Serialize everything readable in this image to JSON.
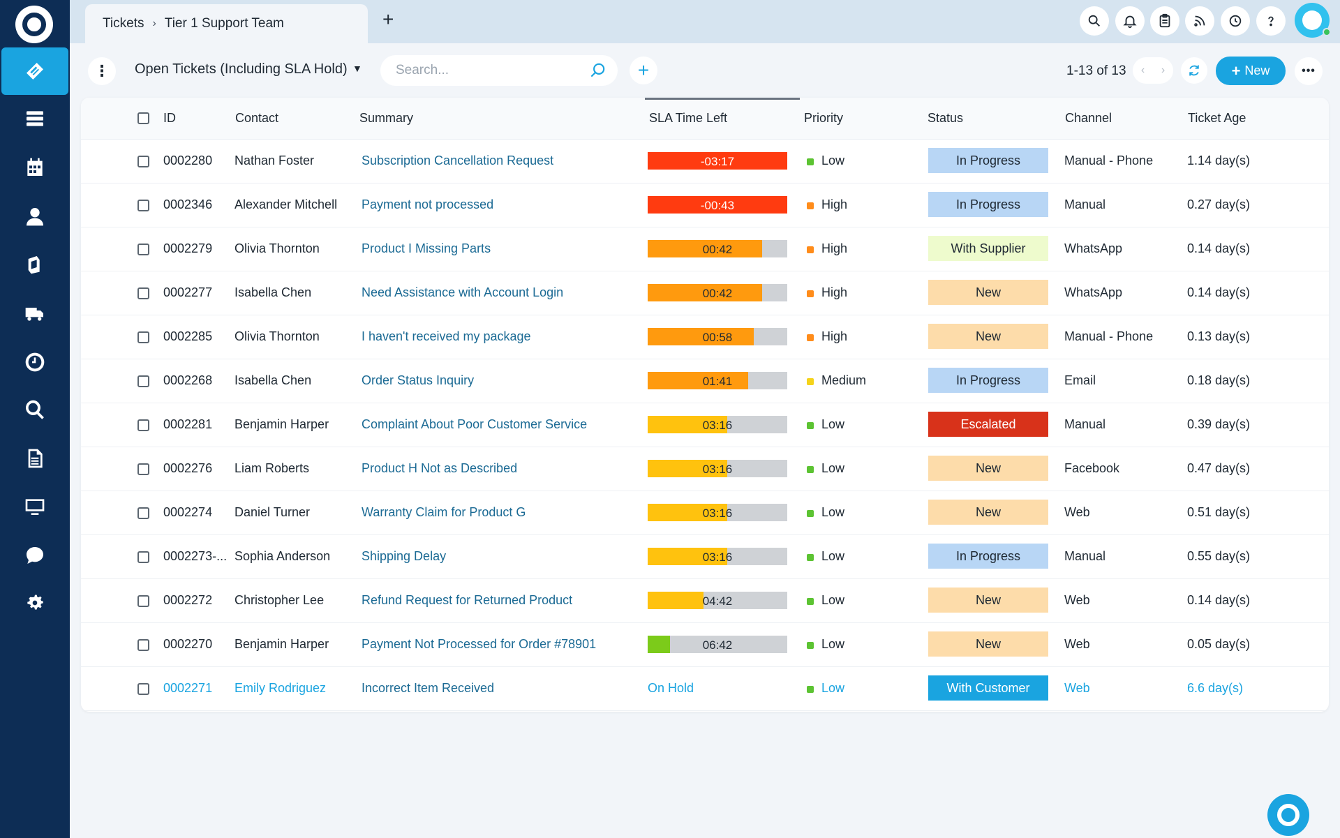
{
  "breadcrumb": {
    "root": "Tickets",
    "current": "Tier 1 Support Team"
  },
  "toolbar": {
    "view_title": "Open Tickets (Including SLA Hold)",
    "search_placeholder": "Search...",
    "pager": "1-13 of 13",
    "new_label": "New"
  },
  "sidebar_icons": [
    "tickets-icon",
    "list-icon",
    "calendar-icon",
    "user-icon",
    "files-icon",
    "truck-icon",
    "clock-icon",
    "search-icon",
    "document-icon",
    "monitor-icon",
    "chat-icon",
    "settings-icon"
  ],
  "top_icons": [
    "search-icon",
    "bell-icon",
    "clipboard-icon",
    "rss-icon",
    "clock-icon",
    "help-icon"
  ],
  "columns": {
    "id": "ID",
    "contact": "Contact",
    "summary": "Summary",
    "sla": "SLA Time Left",
    "priority": "Priority",
    "status": "Status",
    "channel": "Channel",
    "age": "Ticket Age"
  },
  "colors": {
    "sla_red": "#ff3b10",
    "sla_orange": "#ff9a0e",
    "sla_amber": "#ffc20e",
    "sla_green": "#7ccb1a",
    "prio_low": "#5cc332",
    "prio_high": "#ff8c1a",
    "prio_medium": "#f5d31a"
  },
  "tickets": [
    {
      "id": "0002280",
      "contact": "Nathan Foster",
      "summary": "Subscription Cancellation Request",
      "sla": "-03:17",
      "sla_fill_pct": 100,
      "sla_color": "#ff3b10",
      "priority": "Low",
      "priority_color": "#5cc332",
      "status": "In Progress",
      "status_bg": "#b8d6f5",
      "status_fg": "#1f2933",
      "channel": "Manual - Phone",
      "age": "1.14 day(s)"
    },
    {
      "id": "0002346",
      "contact": "Alexander Mitchell",
      "summary": "Payment not processed",
      "sla": "-00:43",
      "sla_fill_pct": 100,
      "sla_color": "#ff3b10",
      "priority": "High",
      "priority_color": "#ff8c1a",
      "status": "In Progress",
      "status_bg": "#b8d6f5",
      "status_fg": "#1f2933",
      "channel": "Manual",
      "age": "0.27 day(s)"
    },
    {
      "id": "0002279",
      "contact": "Olivia Thornton",
      "summary": "Product I Missing Parts",
      "sla": "00:42",
      "sla_fill_pct": 82,
      "sla_color": "#ff9a0e",
      "priority": "High",
      "priority_color": "#ff8c1a",
      "status": "With Supplier",
      "status_bg": "#eefbcd",
      "status_fg": "#1f2933",
      "channel": "WhatsApp",
      "age": "0.14 day(s)"
    },
    {
      "id": "0002277",
      "contact": "Isabella Chen",
      "summary": "Need Assistance with Account Login",
      "sla": "00:42",
      "sla_fill_pct": 82,
      "sla_color": "#ff9a0e",
      "priority": "High",
      "priority_color": "#ff8c1a",
      "status": "New",
      "status_bg": "#fddcaa",
      "status_fg": "#1f2933",
      "channel": "WhatsApp",
      "age": "0.14 day(s)"
    },
    {
      "id": "0002285",
      "contact": "Olivia Thornton",
      "summary": "I haven't received my package",
      "sla": "00:58",
      "sla_fill_pct": 76,
      "sla_color": "#ff9a0e",
      "priority": "High",
      "priority_color": "#ff8c1a",
      "status": "New",
      "status_bg": "#fddcaa",
      "status_fg": "#1f2933",
      "channel": "Manual - Phone",
      "age": "0.13 day(s)"
    },
    {
      "id": "0002268",
      "contact": "Isabella Chen",
      "summary": "Order Status Inquiry",
      "sla": "01:41",
      "sla_fill_pct": 72,
      "sla_color": "#ff9a0e",
      "priority": "Medium",
      "priority_color": "#f5d31a",
      "status": "In Progress",
      "status_bg": "#b8d6f5",
      "status_fg": "#1f2933",
      "channel": "Email",
      "age": "0.18 day(s)"
    },
    {
      "id": "0002281",
      "contact": "Benjamin Harper",
      "summary": "Complaint About Poor Customer Service",
      "sla": "03:16",
      "sla_fill_pct": 57,
      "sla_color": "#ffc20e",
      "priority": "Low",
      "priority_color": "#5cc332",
      "status": "Escalated",
      "status_bg": "#d8321a",
      "status_fg": "#ffffff",
      "channel": "Manual",
      "age": "0.39 day(s)"
    },
    {
      "id": "0002276",
      "contact": "Liam Roberts",
      "summary": "Product H Not as Described",
      "sla": "03:16",
      "sla_fill_pct": 57,
      "sla_color": "#ffc20e",
      "priority": "Low",
      "priority_color": "#5cc332",
      "status": "New",
      "status_bg": "#fddcaa",
      "status_fg": "#1f2933",
      "channel": "Facebook",
      "age": "0.47 day(s)"
    },
    {
      "id": "0002274",
      "contact": "Daniel Turner",
      "summary": "Warranty Claim for Product G",
      "sla": "03:16",
      "sla_fill_pct": 57,
      "sla_color": "#ffc20e",
      "priority": "Low",
      "priority_color": "#5cc332",
      "status": "New",
      "status_bg": "#fddcaa",
      "status_fg": "#1f2933",
      "channel": "Web",
      "age": "0.51 day(s)"
    },
    {
      "id": "0002273-...",
      "contact": "Sophia Anderson",
      "summary": "Shipping Delay",
      "sla": "03:16",
      "sla_fill_pct": 57,
      "sla_color": "#ffc20e",
      "priority": "Low",
      "priority_color": "#5cc332",
      "status": "In Progress",
      "status_bg": "#b8d6f5",
      "status_fg": "#1f2933",
      "channel": "Manual",
      "age": "0.55 day(s)"
    },
    {
      "id": "0002272",
      "contact": "Christopher Lee",
      "summary": "Refund Request for Returned Product",
      "sla": "04:42",
      "sla_fill_pct": 40,
      "sla_color": "#ffc20e",
      "priority": "Low",
      "priority_color": "#5cc332",
      "status": "New",
      "status_bg": "#fddcaa",
      "status_fg": "#1f2933",
      "channel": "Web",
      "age": "0.14 day(s)"
    },
    {
      "id": "0002270",
      "contact": "Benjamin Harper",
      "summary": "Payment Not Processed for Order #78901",
      "sla": "06:42",
      "sla_fill_pct": 16,
      "sla_color": "#7ccb1a",
      "priority": "Low",
      "priority_color": "#5cc332",
      "status": "New",
      "status_bg": "#fddcaa",
      "status_fg": "#1f2933",
      "channel": "Web",
      "age": "0.05 day(s)"
    },
    {
      "id": "0002271",
      "contact": "Emily Rodriguez",
      "summary": "Incorrect Item Received",
      "sla": "On Hold",
      "sla_fill_pct": 0,
      "sla_color": "",
      "priority": "Low",
      "priority_color": "#5cc332",
      "status": "With Customer",
      "status_bg": "#1aa4e0",
      "status_fg": "#ffffff",
      "channel": "Web",
      "age": "6.6 day(s)",
      "on_hold": true
    }
  ]
}
